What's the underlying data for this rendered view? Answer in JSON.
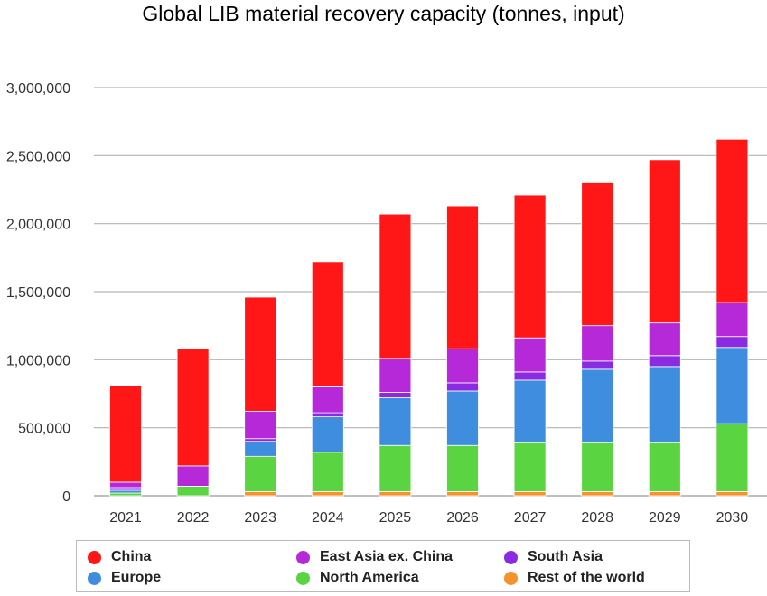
{
  "chart_data": {
    "type": "bar",
    "stacked": true,
    "title": "Global LIB material recovery capacity (tonnes, input)",
    "xlabel": "",
    "ylabel": "",
    "ylim": [
      0,
      3000000
    ],
    "yticks": [
      0,
      500000,
      1000000,
      1500000,
      2000000,
      2500000,
      3000000
    ],
    "ytick_labels": [
      "0",
      "500,000",
      "1,000,000",
      "1,500,000",
      "2,000,000",
      "2,500,000",
      "3,000,000"
    ],
    "grid": true,
    "legend_position": "bottom",
    "categories": [
      "2021",
      "2022",
      "2023",
      "2024",
      "2025",
      "2026",
      "2027",
      "2028",
      "2029",
      "2030"
    ],
    "series": [
      {
        "name": "Rest of the world",
        "color": "#f5922b",
        "values": [
          0,
          0,
          30000,
          30000,
          30000,
          30000,
          30000,
          30000,
          30000,
          30000
        ]
      },
      {
        "name": "North America",
        "color": "#5ad440",
        "values": [
          20000,
          70000,
          260000,
          290000,
          340000,
          340000,
          360000,
          360000,
          360000,
          500000
        ]
      },
      {
        "name": "Europe",
        "color": "#3f8ddf",
        "values": [
          20000,
          0,
          110000,
          260000,
          350000,
          400000,
          460000,
          540000,
          560000,
          560000
        ]
      },
      {
        "name": "South Asia",
        "color": "#8a2be2",
        "values": [
          20000,
          0,
          20000,
          30000,
          40000,
          60000,
          60000,
          60000,
          80000,
          80000
        ]
      },
      {
        "name": "East Asia ex. China",
        "color": "#b629d9",
        "values": [
          40000,
          150000,
          200000,
          190000,
          250000,
          250000,
          250000,
          260000,
          240000,
          250000
        ]
      },
      {
        "name": "China",
        "color": "#ff1717",
        "values": [
          710000,
          860000,
          840000,
          920000,
          1060000,
          1050000,
          1050000,
          1050000,
          1200000,
          1200000
        ]
      }
    ],
    "legend": [
      {
        "name": "China",
        "color": "#ff1717"
      },
      {
        "name": "East Asia ex. China",
        "color": "#b629d9"
      },
      {
        "name": "South Asia",
        "color": "#8a2be2"
      },
      {
        "name": "Europe",
        "color": "#3f8ddf"
      },
      {
        "name": "North America",
        "color": "#5ad440"
      },
      {
        "name": "Rest of the world",
        "color": "#f5922b"
      }
    ]
  }
}
